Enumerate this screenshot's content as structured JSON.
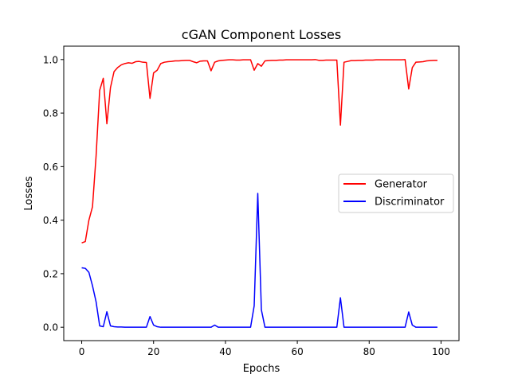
{
  "chart_data": {
    "type": "line",
    "title": "cGAN Component Losses",
    "xlabel": "Epochs",
    "ylabel": "Losses",
    "xlim": [
      -5,
      105
    ],
    "ylim": [
      -0.05,
      1.05
    ],
    "xticks": [
      0,
      20,
      40,
      60,
      80,
      100
    ],
    "xtick_labels": [
      "0",
      "20",
      "40",
      "60",
      "80",
      "100"
    ],
    "yticks": [
      0.0,
      0.2,
      0.4,
      0.6,
      0.8,
      1.0
    ],
    "ytick_labels": [
      "0.0",
      "0.2",
      "0.4",
      "0.6",
      "0.8",
      "1.0"
    ],
    "grid": false,
    "legend_position": "center-right",
    "series": [
      {
        "name": "Generator",
        "color": "#ff0000",
        "x": [
          0,
          1,
          2,
          3,
          4,
          5,
          6,
          7,
          8,
          9,
          10,
          11,
          12,
          13,
          14,
          15,
          16,
          17,
          18,
          19,
          20,
          21,
          22,
          23,
          24,
          25,
          26,
          27,
          28,
          29,
          30,
          31,
          32,
          33,
          34,
          35,
          36,
          37,
          38,
          39,
          40,
          41,
          42,
          43,
          44,
          45,
          46,
          47,
          48,
          49,
          50,
          51,
          52,
          53,
          54,
          55,
          56,
          57,
          58,
          59,
          60,
          61,
          62,
          63,
          64,
          65,
          66,
          67,
          68,
          69,
          70,
          71,
          72,
          73,
          74,
          75,
          76,
          77,
          78,
          79,
          80,
          81,
          82,
          83,
          84,
          85,
          86,
          87,
          88,
          89,
          90,
          91,
          92,
          93,
          94,
          95,
          96,
          97,
          98,
          99
        ],
        "y": [
          0.315,
          0.32,
          0.4,
          0.45,
          0.64,
          0.885,
          0.93,
          0.76,
          0.895,
          0.955,
          0.97,
          0.98,
          0.985,
          0.988,
          0.986,
          0.992,
          0.993,
          0.99,
          0.989,
          0.855,
          0.95,
          0.96,
          0.985,
          0.99,
          0.992,
          0.993,
          0.995,
          0.995,
          0.996,
          0.997,
          0.997,
          0.992,
          0.988,
          0.994,
          0.995,
          0.995,
          0.958,
          0.99,
          0.995,
          0.997,
          0.998,
          0.999,
          0.999,
          0.998,
          0.998,
          0.999,
          0.999,
          0.999,
          0.96,
          0.985,
          0.975,
          0.995,
          0.996,
          0.997,
          0.997,
          0.998,
          0.998,
          0.999,
          0.999,
          0.999,
          0.999,
          0.999,
          0.999,
          0.999,
          0.999,
          1.0,
          0.997,
          0.997,
          0.998,
          0.998,
          0.998,
          0.998,
          0.755,
          0.99,
          0.993,
          0.996,
          0.996,
          0.997,
          0.997,
          0.998,
          0.998,
          0.998,
          0.999,
          0.999,
          0.999,
          0.999,
          0.999,
          0.999,
          0.999,
          0.999,
          1.0,
          0.89,
          0.97,
          0.99,
          0.991,
          0.992,
          0.995,
          0.996,
          0.997,
          0.997
        ]
      },
      {
        "name": "Discriminator",
        "color": "#0000ff",
        "x": [
          0,
          1,
          2,
          3,
          4,
          5,
          6,
          7,
          8,
          9,
          10,
          11,
          12,
          13,
          14,
          15,
          16,
          17,
          18,
          19,
          20,
          21,
          22,
          23,
          24,
          25,
          26,
          27,
          28,
          29,
          30,
          31,
          32,
          33,
          34,
          35,
          36,
          37,
          38,
          39,
          40,
          41,
          42,
          43,
          44,
          45,
          46,
          47,
          48,
          49,
          50,
          51,
          52,
          53,
          54,
          55,
          56,
          57,
          58,
          59,
          60,
          61,
          62,
          63,
          64,
          65,
          66,
          67,
          68,
          69,
          70,
          71,
          72,
          73,
          74,
          75,
          76,
          77,
          78,
          79,
          80,
          81,
          82,
          83,
          84,
          85,
          86,
          87,
          88,
          89,
          90,
          91,
          92,
          93,
          94,
          95,
          96,
          97,
          98,
          99
        ],
        "y": [
          0.222,
          0.22,
          0.205,
          0.155,
          0.095,
          0.005,
          0.002,
          0.058,
          0.005,
          0.002,
          0.001,
          0.001,
          0.0,
          0.0,
          0.0,
          0.0,
          0.0,
          0.0,
          0.0,
          0.04,
          0.008,
          0.002,
          0.0,
          0.0,
          0.0,
          0.0,
          0.0,
          0.0,
          0.0,
          0.0,
          0.0,
          0.0,
          0.0,
          0.0,
          0.0,
          0.0,
          0.0,
          0.008,
          0.0,
          0.0,
          0.0,
          0.0,
          0.0,
          0.0,
          0.0,
          0.0,
          0.0,
          0.0,
          0.08,
          0.5,
          0.065,
          0.0,
          0.0,
          0.0,
          0.0,
          0.0,
          0.0,
          0.0,
          0.0,
          0.0,
          0.0,
          0.0,
          0.0,
          0.0,
          0.0,
          0.0,
          0.0,
          0.0,
          0.0,
          0.0,
          0.0,
          0.0,
          0.11,
          0.0,
          0.0,
          0.0,
          0.0,
          0.0,
          0.0,
          0.0,
          0.0,
          0.0,
          0.0,
          0.0,
          0.0,
          0.0,
          0.0,
          0.0,
          0.0,
          0.0,
          0.0,
          0.057,
          0.008,
          0.0,
          0.0,
          0.0,
          0.0,
          0.0,
          0.0,
          0.0
        ]
      }
    ]
  }
}
